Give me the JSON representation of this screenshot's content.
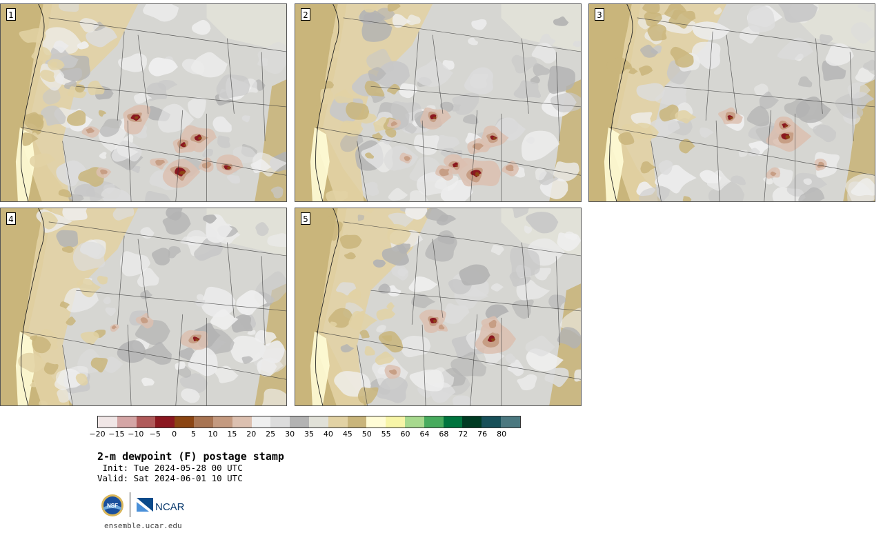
{
  "panels": [
    {
      "label": "1",
      "seed": 11,
      "browns": [
        [
          196,
          170,
          1.0
        ],
        [
          288,
          200,
          1.0
        ],
        [
          266,
          210,
          0.7
        ],
        [
          262,
          250,
          1.3
        ],
        [
          330,
          243,
          0.8
        ],
        [
          130,
          190,
          0.5
        ],
        [
          150,
          250,
          0.4
        ],
        [
          232,
          236,
          0.5
        ],
        [
          300,
          240,
          0.5
        ]
      ]
    },
    {
      "label": "2",
      "seed": 23,
      "browns": [
        [
          628,
          170,
          0.8
        ],
        [
          715,
          200,
          0.9
        ],
        [
          693,
          212,
          0.6
        ],
        [
          690,
          252,
          1.2
        ],
        [
          660,
          240,
          0.7
        ],
        [
          645,
          250,
          0.6
        ],
        [
          570,
          180,
          0.4
        ],
        [
          590,
          230,
          0.4
        ],
        [
          740,
          245,
          0.5
        ]
      ]
    },
    {
      "label": "3",
      "seed": 37,
      "browns": [
        [
          1058,
          170,
          0.7
        ],
        [
          1140,
          198,
          1.1
        ],
        [
          1138,
          182,
          0.7
        ],
        [
          1120,
          252,
          0.4
        ],
        [
          1190,
          240,
          0.4
        ]
      ]
    },
    {
      "label": "4",
      "seed": 41,
      "browns": [
        [
          210,
          465,
          0.5
        ],
        [
          284,
          492,
          0.8
        ],
        [
          165,
          475,
          0.3
        ]
      ]
    },
    {
      "label": "5",
      "seed": 53,
      "browns": [
        [
          628,
          465,
          0.8
        ],
        [
          713,
          492,
          1.1
        ],
        [
          715,
          470,
          0.6
        ],
        [
          570,
          540,
          0.5
        ],
        [
          640,
          475,
          0.4
        ]
      ]
    }
  ],
  "colorbar": {
    "colors": [
      "#f0e6e6",
      "#d4a5a5",
      "#b05a5a",
      "#8b1820",
      "#8b4513",
      "#a87452",
      "#c49a80",
      "#dcc0b0",
      "#efefef",
      "#dcdcdc",
      "#b3b3b3",
      "#e1e1d8",
      "#e2d2a4",
      "#c9b57b",
      "#fffcd6",
      "#f7f5a8",
      "#a7d98e",
      "#48ab5e",
      "#00743e",
      "#003b23",
      "#175059",
      "#4b7880"
    ],
    "ticks": [
      "−20",
      "−15",
      "−10",
      "−5",
      "0",
      "5",
      "10",
      "15",
      "20",
      "25",
      "30",
      "35",
      "40",
      "45",
      "50",
      "55",
      "60",
      "64",
      "68",
      "72",
      "76",
      "80"
    ]
  },
  "title": "2-m dewpoint (F) postage stamp",
  "init": " Init: Tue 2024-05-28 00 UTC",
  "valid": "Valid: Sat 2024-06-01 10 UTC",
  "logos": {
    "nsf": "NSF",
    "ncar": "NCAR"
  },
  "site": "ensemble.ucar.edu"
}
